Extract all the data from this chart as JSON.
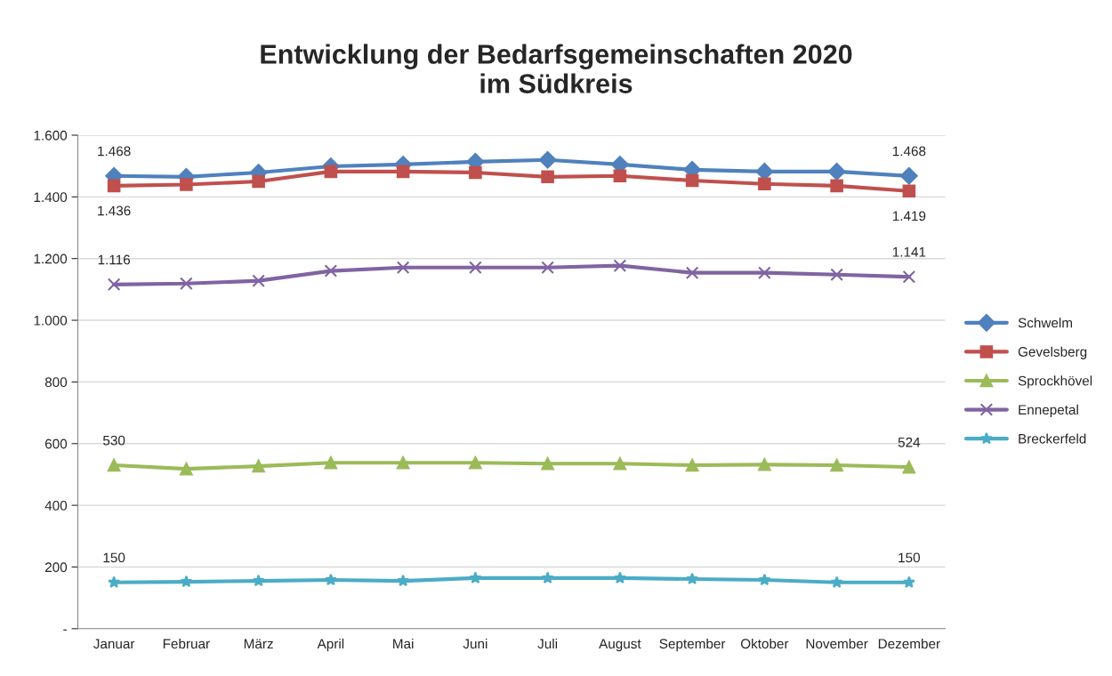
{
  "chart_data": {
    "type": "line",
    "title": "Entwicklung der Bedarfsgemeinschaften 2020\nim Südkreis",
    "categories": [
      "Januar",
      "Februar",
      "März",
      "April",
      "Mai",
      "Juni",
      "Juli",
      "August",
      "September",
      "Oktober",
      "November",
      "Dezember"
    ],
    "series": [
      {
        "name": "Schwelm",
        "color": "#4f81bd",
        "marker": "diamond",
        "values": [
          1468,
          1465,
          1479,
          1499,
          1505,
          1514,
          1520,
          1505,
          1488,
          1482,
          1482,
          1468
        ],
        "value_labels": [
          "1.468",
          null,
          null,
          null,
          null,
          null,
          null,
          null,
          null,
          null,
          null,
          "1.468"
        ]
      },
      {
        "name": "Gevelsberg",
        "color": "#c0504d",
        "marker": "square",
        "values": [
          1436,
          1440,
          1450,
          1482,
          1482,
          1479,
          1465,
          1468,
          1453,
          1442,
          1436,
          1419
        ],
        "value_labels": [
          "1.436",
          null,
          null,
          null,
          null,
          null,
          null,
          null,
          null,
          null,
          null,
          "1.419"
        ]
      },
      {
        "name": "Sprockhövel",
        "color": "#9bbb59",
        "marker": "triangle",
        "values": [
          530,
          518,
          527,
          538,
          538,
          538,
          535,
          535,
          530,
          532,
          530,
          524
        ],
        "value_labels": [
          "530",
          null,
          null,
          null,
          null,
          null,
          null,
          null,
          null,
          null,
          null,
          "524"
        ]
      },
      {
        "name": "Ennepetal",
        "color": "#8064a2",
        "marker": "cross",
        "values": [
          1116,
          1119,
          1128,
          1160,
          1171,
          1171,
          1171,
          1177,
          1154,
          1154,
          1148,
          1141
        ],
        "value_labels": [
          "1.116",
          null,
          null,
          null,
          null,
          null,
          null,
          null,
          null,
          null,
          null,
          "1.141"
        ]
      },
      {
        "name": "Breckerfeld",
        "color": "#4bacc6",
        "marker": "star",
        "values": [
          150,
          152,
          155,
          158,
          155,
          164,
          164,
          164,
          161,
          158,
          150,
          150
        ],
        "value_labels": [
          "150",
          null,
          null,
          null,
          null,
          null,
          null,
          null,
          null,
          null,
          null,
          "150"
        ]
      }
    ],
    "ylim": [
      0,
      1600
    ],
    "yticks": [
      {
        "value": 0,
        "label": "-"
      },
      {
        "value": 200,
        "label": "200"
      },
      {
        "value": 400,
        "label": "400"
      },
      {
        "value": 600,
        "label": "600"
      },
      {
        "value": 800,
        "label": "800"
      },
      {
        "value": 1000,
        "label": "1.000"
      },
      {
        "value": 1200,
        "label": "1.200"
      },
      {
        "value": 1400,
        "label": "1.400"
      },
      {
        "value": 1600,
        "label": "1.600"
      }
    ],
    "grid": "y",
    "legend": "right",
    "line_style": "solid"
  }
}
